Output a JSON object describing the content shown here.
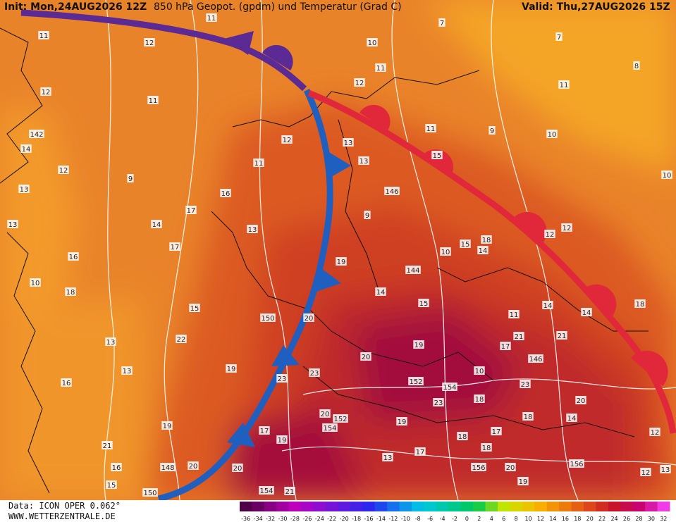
{
  "header": {
    "init": "Init: Mon,24AUG2026 12Z",
    "title": "850 hPa Geopot. (gpdm) und Temperatur (Grad C)",
    "valid": "Valid: Thu,27AUG2026 15Z"
  },
  "footer": {
    "data": "Data: ICON OPER 0.062°",
    "site": "WWW.WETTERZENTRALE.DE"
  },
  "colorbar": {
    "values": [
      -36,
      -34,
      -32,
      -30,
      -28,
      -26,
      -24,
      -22,
      -20,
      -18,
      -16,
      -14,
      -12,
      -10,
      -8,
      -6,
      -4,
      -2,
      0,
      2,
      4,
      6,
      8,
      10,
      12,
      14,
      16,
      18,
      20,
      22,
      24,
      26,
      28,
      30,
      32
    ]
  },
  "map": {
    "labels": [
      "11",
      "11",
      "12",
      "10",
      "11",
      "7",
      "7",
      "8",
      "11",
      "12",
      "11",
      "12",
      "11",
      "9",
      "10",
      "142",
      "14",
      "12",
      "13",
      "15",
      "13",
      "11",
      "12",
      "9",
      "10",
      "13",
      "16",
      "146",
      "17",
      "9",
      "13",
      "14",
      "13",
      "12",
      "12",
      "17",
      "15",
      "14",
      "18",
      "10",
      "16",
      "19",
      "144",
      "10",
      "18",
      "14",
      "15",
      "150",
      "20",
      "15",
      "14",
      "14",
      "18",
      "11",
      "13",
      "22",
      "19",
      "21",
      "17",
      "21",
      "20",
      "146",
      "13",
      "19",
      "23",
      "10",
      "16",
      "23",
      "152",
      "154",
      "23",
      "23",
      "18",
      "20",
      "20",
      "152",
      "154",
      "19",
      "18",
      "14",
      "19",
      "17",
      "17",
      "12",
      "21",
      "19",
      "18",
      "18",
      "17",
      "13",
      "16",
      "148",
      "20",
      "20",
      "156",
      "20",
      "156",
      "12",
      "13",
      "15",
      "150",
      "154",
      "21",
      "19"
    ]
  }
}
